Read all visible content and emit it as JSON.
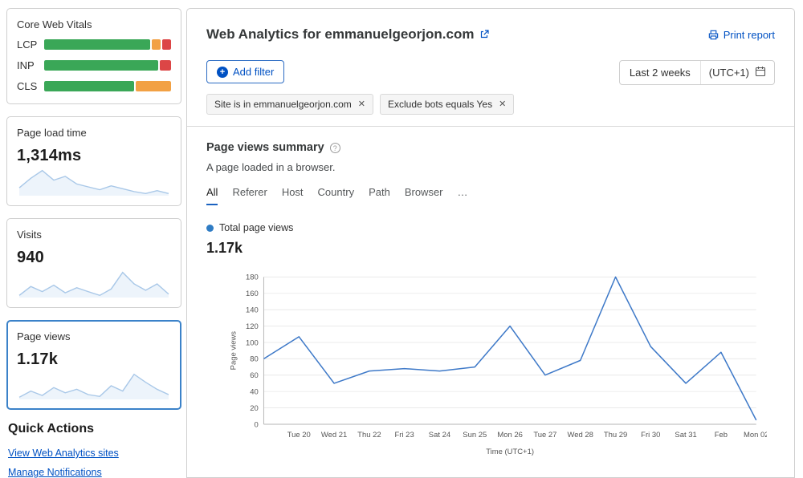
{
  "colors": {
    "accent_blue": "#0051c3",
    "chart_line": "#3e79c8",
    "spark_line": "#a9c8e8",
    "spark_fill": "#edf4fb",
    "legend_dot": "#2f7cc4",
    "cwv_green": "#3aa757",
    "cwv_orange": "#f2a144",
    "cwv_red": "#dc4646"
  },
  "sidebar": {
    "cwv": {
      "title": "Core Web Vitals",
      "rows": [
        {
          "label": "LCP",
          "segments": [
            {
              "color": "#3aa757",
              "pct": 86
            },
            {
              "color": "#f2a144",
              "pct": 7
            },
            {
              "color": "#dc4646",
              "pct": 7
            }
          ]
        },
        {
          "label": "INP",
          "segments": [
            {
              "color": "#3aa757",
              "pct": 91
            },
            {
              "color": "#dc4646",
              "pct": 9
            }
          ]
        },
        {
          "label": "CLS",
          "segments": [
            {
              "color": "#3aa757",
              "pct": 72
            },
            {
              "color": "#f2a144",
              "pct": 28
            }
          ]
        }
      ]
    },
    "metrics": [
      {
        "label": "Page load time",
        "value": "1,314ms",
        "spark": [
          62,
          72,
          80,
          70,
          74,
          66,
          63,
          60,
          64,
          61,
          58,
          56,
          59,
          56
        ]
      },
      {
        "label": "Visits",
        "value": "940",
        "spark": [
          55,
          62,
          58,
          63,
          57,
          61,
          58,
          55,
          60,
          73,
          64,
          59,
          64,
          56
        ]
      },
      {
        "label": "Page views",
        "value": "1.17k",
        "spark": [
          50,
          57,
          52,
          61,
          55,
          59,
          53,
          51,
          63,
          57,
          76,
          67,
          59,
          53
        ]
      }
    ],
    "quick_actions": {
      "title": "Quick Actions",
      "links": [
        "View Web Analytics sites",
        "Manage Notifications"
      ]
    }
  },
  "header": {
    "title": "Web Analytics for emmanuelgeorjon.com",
    "print_label": "Print report"
  },
  "filters": {
    "add_label": "Add filter",
    "chips": [
      {
        "text": "Site is in emmanuelgeorjon.com"
      },
      {
        "text": "Exclude bots equals Yes"
      }
    ],
    "range_label": "Last 2 weeks",
    "timezone": "(UTC+1)"
  },
  "summary": {
    "title": "Page views summary",
    "subtitle": "A page loaded in a browser.",
    "tabs": [
      "All",
      "Referer",
      "Host",
      "Country",
      "Path",
      "Browser",
      "…"
    ],
    "legend": "Total page views",
    "total": "1.17k"
  },
  "chart_data": {
    "type": "line",
    "title": "Total page views",
    "x": [
      "",
      "Tue 20",
      "Wed 21",
      "Thu 22",
      "Fri 23",
      "Sat 24",
      "Sun 25",
      "Mon 26",
      "Tue 27",
      "Wed 28",
      "Thu 29",
      "Fri 30",
      "Sat 31",
      "Feb",
      "Mon 02"
    ],
    "values": [
      80,
      107,
      50,
      65,
      68,
      65,
      70,
      120,
      60,
      78,
      180,
      95,
      50,
      88,
      5
    ],
    "xlabel": "Time (UTC+1)",
    "ylabel": "Page views",
    "ylim": [
      0,
      180
    ],
    "ytick_step": 20,
    "grid": true,
    "legend_position": "top-left"
  }
}
